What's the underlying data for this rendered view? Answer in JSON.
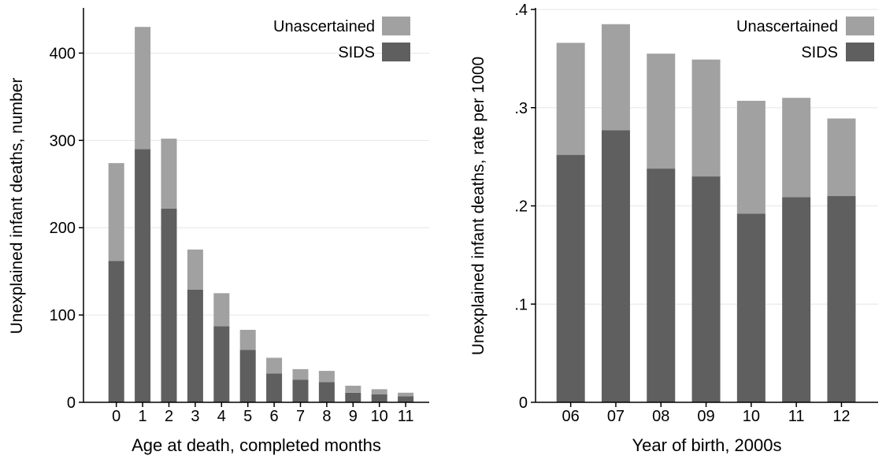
{
  "colors": {
    "sids": "#5f5f5f",
    "unascertained": "#a1a1a1",
    "grid": "#e6e6e6",
    "axis": "#000000"
  },
  "chart_data": [
    {
      "type": "bar",
      "stacked": true,
      "categories": [
        "0",
        "1",
        "2",
        "3",
        "4",
        "5",
        "6",
        "7",
        "8",
        "9",
        "10",
        "11"
      ],
      "series": [
        {
          "name": "SIDS",
          "values": [
            162,
            290,
            222,
            129,
            87,
            60,
            33,
            26,
            23,
            11,
            9,
            7
          ]
        },
        {
          "name": "Unascertained",
          "values": [
            112,
            140,
            80,
            46,
            38,
            23,
            18,
            12,
            13,
            8,
            6,
            4
          ]
        }
      ],
      "xlabel": "Age at death, completed months",
      "ylabel": "Unexplained infant deaths, number",
      "ylim": [
        0,
        450
      ],
      "yticks": [
        0,
        100,
        200,
        300,
        400
      ],
      "ytick_labels": [
        "0",
        "100",
        "200",
        "300",
        "400"
      ],
      "grid": true,
      "legend": "top-right"
    },
    {
      "type": "bar",
      "stacked": true,
      "categories": [
        "06",
        "07",
        "08",
        "09",
        "10",
        "11",
        "12"
      ],
      "series": [
        {
          "name": "SIDS",
          "values": [
            0.252,
            0.277,
            0.238,
            0.23,
            0.192,
            0.209,
            0.21
          ]
        },
        {
          "name": "Unascertained",
          "values": [
            0.114,
            0.108,
            0.117,
            0.119,
            0.115,
            0.101,
            0.079
          ]
        }
      ],
      "xlabel": "Year of birth, 2000s",
      "ylabel": "Unexplained infant deaths, rate per 1000",
      "ylim": [
        0,
        0.4
      ],
      "yticks": [
        0,
        0.1,
        0.2,
        0.3,
        0.4
      ],
      "ytick_labels": [
        "0",
        ".1",
        ".2",
        ".3",
        ".4"
      ],
      "grid": true,
      "legend": "top-right"
    }
  ]
}
